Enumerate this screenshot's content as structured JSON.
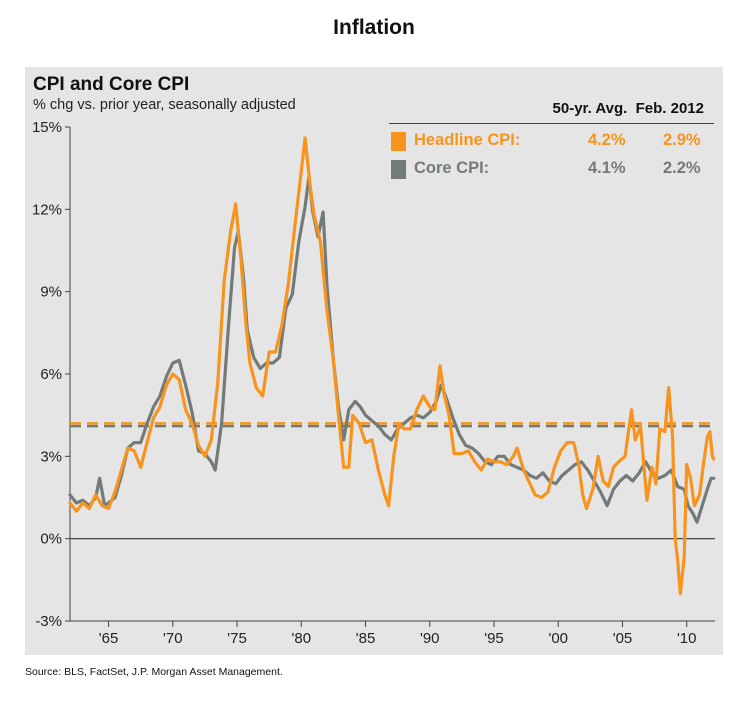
{
  "page": {
    "title": "Inflation",
    "source": "Source: BLS, FactSet, J.P. Morgan Asset Management."
  },
  "colors": {
    "headline": "#f7941d",
    "core": "#737b78",
    "panel_background": "#e5e5e5",
    "zero_line": "#333333"
  },
  "legend": {
    "header": "50-yr. Avg.  Feb. 2012",
    "rows": [
      {
        "name": "Headline CPI:",
        "avg": "4.2%",
        "latest": "2.9%",
        "color": "#f7941d"
      },
      {
        "name": "Core CPI:",
        "avg": "4.1%",
        "latest": "2.2%",
        "color": "#737b78"
      }
    ]
  },
  "chart_data": {
    "type": "line",
    "title": "CPI and Core CPI",
    "subtitle": "% chg vs. prior year, seasonally adjusted",
    "xlabel": "",
    "ylabel": "",
    "x_range": [
      1962.0,
      2012.2
    ],
    "ylim": [
      -3,
      15
    ],
    "y_ticks": [
      -3,
      0,
      3,
      6,
      9,
      12,
      15
    ],
    "y_tick_labels": [
      "-3%",
      "0%",
      "3%",
      "6%",
      "9%",
      "12%",
      "15%"
    ],
    "x_ticks": [
      1965,
      1970,
      1975,
      1980,
      1985,
      1990,
      1995,
      2000,
      2005,
      2010
    ],
    "x_tick_labels": [
      "'65",
      "'70",
      "'75",
      "'80",
      "'85",
      "'90",
      "'95",
      "'00",
      "'05",
      "'10"
    ],
    "grid": false,
    "legend_position": "top-right",
    "series": [
      {
        "name": "Headline CPI",
        "color": "#f7941d",
        "points": [
          [
            1962.0,
            1.3
          ],
          [
            1962.5,
            1.0
          ],
          [
            1963.0,
            1.3
          ],
          [
            1963.5,
            1.1
          ],
          [
            1964.0,
            1.6
          ],
          [
            1964.5,
            1.2
          ],
          [
            1965.0,
            1.1
          ],
          [
            1965.5,
            1.7
          ],
          [
            1966.0,
            2.5
          ],
          [
            1966.5,
            3.3
          ],
          [
            1967.0,
            3.2
          ],
          [
            1967.5,
            2.6
          ],
          [
            1968.0,
            3.5
          ],
          [
            1968.5,
            4.4
          ],
          [
            1969.0,
            4.8
          ],
          [
            1969.5,
            5.6
          ],
          [
            1970.0,
            6.0
          ],
          [
            1970.5,
            5.8
          ],
          [
            1971.0,
            4.7
          ],
          [
            1971.5,
            4.2
          ],
          [
            1972.0,
            3.4
          ],
          [
            1972.5,
            3.0
          ],
          [
            1973.0,
            3.6
          ],
          [
            1973.5,
            5.7
          ],
          [
            1974.0,
            9.4
          ],
          [
            1974.5,
            11.2
          ],
          [
            1974.9,
            12.2
          ],
          [
            1975.3,
            10.2
          ],
          [
            1975.7,
            7.8
          ],
          [
            1976.0,
            6.4
          ],
          [
            1976.5,
            5.5
          ],
          [
            1977.0,
            5.2
          ],
          [
            1977.5,
            6.8
          ],
          [
            1978.0,
            6.8
          ],
          [
            1978.5,
            7.8
          ],
          [
            1979.0,
            9.3
          ],
          [
            1979.5,
            11.4
          ],
          [
            1980.0,
            13.4
          ],
          [
            1980.3,
            14.6
          ],
          [
            1980.7,
            12.8
          ],
          [
            1981.0,
            11.8
          ],
          [
            1981.5,
            10.8
          ],
          [
            1982.0,
            8.3
          ],
          [
            1982.5,
            6.5
          ],
          [
            1982.9,
            4.5
          ],
          [
            1983.3,
            2.6
          ],
          [
            1983.7,
            2.6
          ],
          [
            1984.0,
            4.5
          ],
          [
            1984.5,
            4.2
          ],
          [
            1985.0,
            3.5
          ],
          [
            1985.5,
            3.6
          ],
          [
            1986.0,
            2.5
          ],
          [
            1986.5,
            1.6
          ],
          [
            1986.8,
            1.2
          ],
          [
            1987.2,
            3.0
          ],
          [
            1987.6,
            4.2
          ],
          [
            1988.0,
            4.0
          ],
          [
            1988.5,
            4.0
          ],
          [
            1989.0,
            4.7
          ],
          [
            1989.5,
            5.2
          ],
          [
            1990.0,
            4.8
          ],
          [
            1990.4,
            4.7
          ],
          [
            1990.8,
            6.3
          ],
          [
            1991.1,
            5.3
          ],
          [
            1991.5,
            4.5
          ],
          [
            1991.9,
            3.1
          ],
          [
            1992.5,
            3.1
          ],
          [
            1993.0,
            3.2
          ],
          [
            1993.5,
            2.8
          ],
          [
            1994.0,
            2.5
          ],
          [
            1994.5,
            2.9
          ],
          [
            1995.0,
            2.8
          ],
          [
            1995.5,
            2.8
          ],
          [
            1996.0,
            2.7
          ],
          [
            1996.5,
            3.0
          ],
          [
            1996.8,
            3.3
          ],
          [
            1997.3,
            2.5
          ],
          [
            1997.8,
            2.0
          ],
          [
            1998.2,
            1.6
          ],
          [
            1998.7,
            1.5
          ],
          [
            1999.2,
            1.7
          ],
          [
            1999.7,
            2.6
          ],
          [
            2000.2,
            3.2
          ],
          [
            2000.7,
            3.5
          ],
          [
            2001.2,
            3.5
          ],
          [
            2001.6,
            2.7
          ],
          [
            2001.9,
            1.6
          ],
          [
            2002.2,
            1.1
          ],
          [
            2002.7,
            1.8
          ],
          [
            2003.1,
            3.0
          ],
          [
            2003.5,
            2.1
          ],
          [
            2003.9,
            1.9
          ],
          [
            2004.3,
            2.6
          ],
          [
            2004.7,
            2.8
          ],
          [
            2005.2,
            3.0
          ],
          [
            2005.7,
            4.7
          ],
          [
            2006.0,
            3.6
          ],
          [
            2006.4,
            4.1
          ],
          [
            2006.9,
            1.4
          ],
          [
            2007.3,
            2.6
          ],
          [
            2007.6,
            2.0
          ],
          [
            2007.9,
            4.0
          ],
          [
            2008.3,
            3.9
          ],
          [
            2008.6,
            5.5
          ],
          [
            2008.9,
            3.7
          ],
          [
            2009.1,
            0.0
          ],
          [
            2009.3,
            -0.8
          ],
          [
            2009.5,
            -2.0
          ],
          [
            2009.8,
            -0.7
          ],
          [
            2010.0,
            2.7
          ],
          [
            2010.3,
            2.2
          ],
          [
            2010.6,
            1.2
          ],
          [
            2011.0,
            1.6
          ],
          [
            2011.3,
            2.7
          ],
          [
            2011.6,
            3.7
          ],
          [
            2011.8,
            3.9
          ],
          [
            2012.0,
            3.0
          ],
          [
            2012.1,
            2.9
          ]
        ]
      },
      {
        "name": "Core CPI",
        "color": "#737b78",
        "points": [
          [
            1962.0,
            1.6
          ],
          [
            1962.5,
            1.3
          ],
          [
            1963.0,
            1.4
          ],
          [
            1963.5,
            1.2
          ],
          [
            1964.0,
            1.5
          ],
          [
            1964.3,
            2.2
          ],
          [
            1964.7,
            1.2
          ],
          [
            1965.0,
            1.3
          ],
          [
            1965.5,
            1.5
          ],
          [
            1966.0,
            2.3
          ],
          [
            1966.5,
            3.3
          ],
          [
            1967.0,
            3.5
          ],
          [
            1967.5,
            3.5
          ],
          [
            1968.0,
            4.2
          ],
          [
            1968.5,
            4.8
          ],
          [
            1969.0,
            5.2
          ],
          [
            1969.5,
            5.9
          ],
          [
            1970.0,
            6.4
          ],
          [
            1970.5,
            6.5
          ],
          [
            1971.0,
            5.6
          ],
          [
            1971.5,
            4.6
          ],
          [
            1972.0,
            3.2
          ],
          [
            1972.5,
            3.1
          ],
          [
            1973.0,
            2.8
          ],
          [
            1973.3,
            2.5
          ],
          [
            1973.8,
            4.2
          ],
          [
            1974.3,
            7.5
          ],
          [
            1974.8,
            10.6
          ],
          [
            1975.1,
            11.2
          ],
          [
            1975.5,
            9.5
          ],
          [
            1975.8,
            7.6
          ],
          [
            1976.3,
            6.6
          ],
          [
            1976.8,
            6.2
          ],
          [
            1977.3,
            6.4
          ],
          [
            1977.8,
            6.4
          ],
          [
            1978.3,
            6.6
          ],
          [
            1978.8,
            8.4
          ],
          [
            1979.3,
            8.9
          ],
          [
            1979.8,
            10.8
          ],
          [
            1980.3,
            12.1
          ],
          [
            1980.6,
            13.2
          ],
          [
            1980.9,
            11.9
          ],
          [
            1981.3,
            11.0
          ],
          [
            1981.7,
            11.9
          ],
          [
            1982.0,
            9.2
          ],
          [
            1982.5,
            6.5
          ],
          [
            1982.9,
            4.8
          ],
          [
            1983.3,
            3.6
          ],
          [
            1983.7,
            4.7
          ],
          [
            1984.2,
            5.0
          ],
          [
            1984.6,
            4.8
          ],
          [
            1985.0,
            4.5
          ],
          [
            1985.5,
            4.3
          ],
          [
            1986.0,
            4.1
          ],
          [
            1986.5,
            3.8
          ],
          [
            1987.0,
            3.6
          ],
          [
            1987.5,
            4.0
          ],
          [
            1988.0,
            4.2
          ],
          [
            1988.5,
            4.4
          ],
          [
            1989.0,
            4.5
          ],
          [
            1989.5,
            4.4
          ],
          [
            1990.0,
            4.6
          ],
          [
            1990.5,
            5.0
          ],
          [
            1990.9,
            5.6
          ],
          [
            1991.3,
            5.1
          ],
          [
            1991.8,
            4.4
          ],
          [
            1992.3,
            3.8
          ],
          [
            1992.8,
            3.4
          ],
          [
            1993.3,
            3.3
          ],
          [
            1993.8,
            3.1
          ],
          [
            1994.3,
            2.8
          ],
          [
            1994.8,
            2.7
          ],
          [
            1995.3,
            3.0
          ],
          [
            1995.8,
            3.0
          ],
          [
            1996.3,
            2.7
          ],
          [
            1996.8,
            2.6
          ],
          [
            1997.3,
            2.5
          ],
          [
            1997.8,
            2.3
          ],
          [
            1998.3,
            2.2
          ],
          [
            1998.8,
            2.4
          ],
          [
            1999.3,
            2.1
          ],
          [
            1999.8,
            2.0
          ],
          [
            2000.3,
            2.3
          ],
          [
            2000.8,
            2.5
          ],
          [
            2001.3,
            2.7
          ],
          [
            2001.8,
            2.8
          ],
          [
            2002.3,
            2.5
          ],
          [
            2002.8,
            2.1
          ],
          [
            2003.3,
            1.7
          ],
          [
            2003.8,
            1.2
          ],
          [
            2004.3,
            1.8
          ],
          [
            2004.8,
            2.1
          ],
          [
            2005.3,
            2.3
          ],
          [
            2005.8,
            2.1
          ],
          [
            2006.3,
            2.4
          ],
          [
            2006.8,
            2.8
          ],
          [
            2007.3,
            2.4
          ],
          [
            2007.8,
            2.2
          ],
          [
            2008.3,
            2.3
          ],
          [
            2008.8,
            2.5
          ],
          [
            2009.3,
            1.9
          ],
          [
            2009.8,
            1.8
          ],
          [
            2010.1,
            1.2
          ],
          [
            2010.5,
            0.9
          ],
          [
            2010.8,
            0.6
          ],
          [
            2011.2,
            1.2
          ],
          [
            2011.6,
            1.8
          ],
          [
            2011.9,
            2.2
          ],
          [
            2012.1,
            2.2
          ]
        ]
      }
    ],
    "reference_lines": [
      {
        "label": "Headline CPI 50-yr. Avg.",
        "y": 4.2,
        "color": "#f7941d",
        "style": "dashed"
      },
      {
        "label": "Core CPI 50-yr. Avg.",
        "y": 4.1,
        "color": "#737b78",
        "style": "dashed"
      },
      {
        "label": "zero line",
        "y": 0,
        "color": "#333333",
        "style": "solid"
      }
    ]
  }
}
